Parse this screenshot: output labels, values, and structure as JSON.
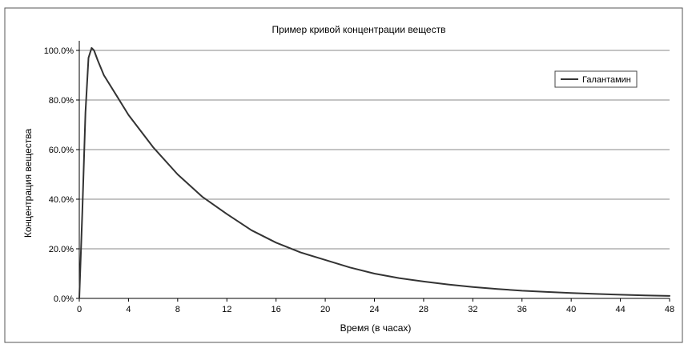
{
  "chart_data": {
    "type": "line",
    "title": "Пример кривой концентрации веществ",
    "xlabel": "Время (в часах)",
    "ylabel": "Концентрация вещества",
    "xlim": [
      0,
      48
    ],
    "ylim": [
      0,
      100
    ],
    "x_ticks": [
      0,
      4,
      8,
      12,
      16,
      20,
      24,
      28,
      32,
      36,
      40,
      44,
      48
    ],
    "x_tick_labels": [
      "0",
      "4",
      "8",
      "12",
      "16",
      "20",
      "24",
      "28",
      "32",
      "36",
      "40",
      "44",
      "48"
    ],
    "y_ticks": [
      0,
      20,
      40,
      60,
      80,
      100
    ],
    "y_tick_labels": [
      "0.0%",
      "20.0%",
      "40.0%",
      "60.0%",
      "80.0%",
      "100.0%"
    ],
    "grid": "horizontal",
    "legend_position": "top-right",
    "line_color": "#333333",
    "series": [
      {
        "name": "Галантамин",
        "x": [
          0,
          0.25,
          0.5,
          0.75,
          1,
          1.2,
          1.5,
          2,
          3,
          4,
          6,
          8,
          10,
          12,
          14,
          16,
          18,
          20,
          22,
          24,
          26,
          28,
          30,
          32,
          34,
          36,
          38,
          40,
          42,
          44,
          46,
          48
        ],
        "y": [
          0,
          35,
          75,
          97,
          101,
          100,
          96,
          90,
          82,
          74,
          61,
          50,
          41,
          34,
          27.5,
          22.5,
          18.5,
          15.5,
          12.5,
          10,
          8.2,
          6.8,
          5.6,
          4.6,
          3.8,
          3.1,
          2.6,
          2.2,
          1.8,
          1.5,
          1.2,
          1.0
        ]
      }
    ]
  }
}
